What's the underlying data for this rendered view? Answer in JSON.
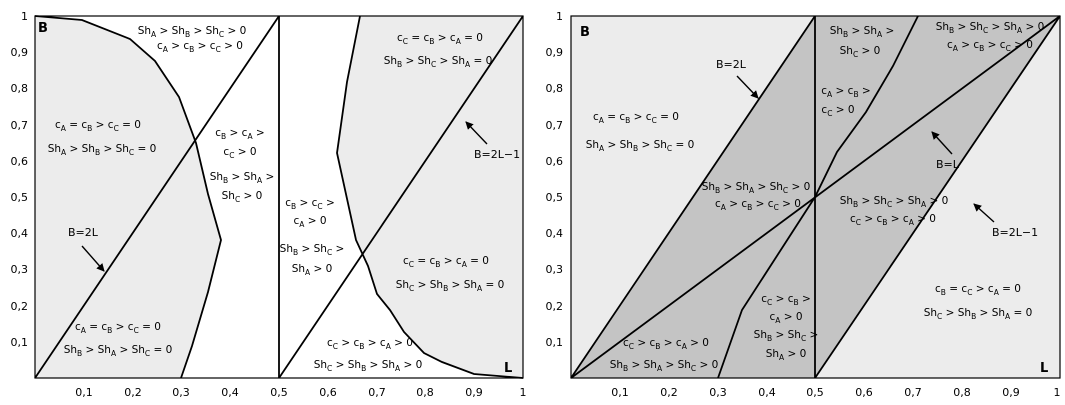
{
  "left_panel": {
    "corner_y": "B",
    "corner_x": "L",
    "ticks_x": [
      "0,1",
      "0,2",
      "0,3",
      "0,4",
      "0,5",
      "0,6",
      "0,7",
      "0,8",
      "0,9",
      "1"
    ],
    "ticks_y": [
      "0,1",
      "0,2",
      "0,3",
      "0,4",
      "0,5",
      "0,6",
      "0,7",
      "0,8",
      "0,9",
      "1"
    ],
    "callouts": {
      "b2l": "B=2L",
      "b2l1": "B=2L−1"
    },
    "regions": [
      {
        "key": "top",
        "l1": "Shₐ > Shᵦ > Shᶜ > 0",
        "l2": "cₐ > cᵦ > cᶜ > 0"
      }
    ]
  },
  "right_panel": {
    "corner_y": "B",
    "corner_x": "L",
    "ticks_x": [
      "0,1",
      "0,2",
      "0,3",
      "0,4",
      "0,5",
      "0,6",
      "0,7",
      "0,8",
      "0,9",
      "1"
    ],
    "ticks_y": [
      "0,1",
      "0,2",
      "0,3",
      "0,4",
      "0,5",
      "0,6",
      "0,7",
      "0,8",
      "0,9",
      "1"
    ],
    "callouts": {
      "b2l": "B=2L",
      "bl": "B=L",
      "b2l1": "B=2L−1"
    }
  },
  "colors": {
    "light": "#ececec",
    "dark": "#c4c4c4",
    "ink": "#000000"
  }
}
